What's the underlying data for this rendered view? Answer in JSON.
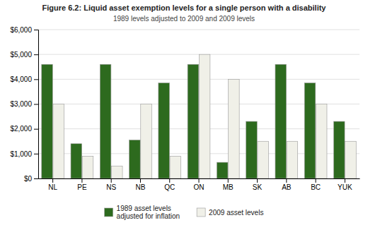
{
  "chart_data": {
    "type": "bar",
    "title": "Figure 6.2: Liquid asset exemption levels for a single person with a disability",
    "subtitle": "1989 levels adjusted to 2009 and 2009 levels",
    "categories": [
      "NL",
      "PE",
      "NS",
      "NB",
      "QC",
      "ON",
      "MB",
      "SK",
      "AB",
      "BC",
      "YUK"
    ],
    "series": [
      {
        "name": "1989 asset levels\nadjusted for inflation",
        "color": "#2d6a1e",
        "values": [
          4600,
          1400,
          4600,
          1550,
          3850,
          4600,
          650,
          2300,
          4600,
          3850,
          2300
        ]
      },
      {
        "name": "2009 asset levels",
        "color": "#f0f0e8",
        "values": [
          3000,
          900,
          500,
          3000,
          900,
          5000,
          4000,
          1500,
          1500,
          3000,
          1500
        ]
      }
    ],
    "ylim": [
      0,
      6000
    ],
    "yticks": [
      {
        "value": 0,
        "label": "$0"
      },
      {
        "value": 1000,
        "label": "$1,000"
      },
      {
        "value": 2000,
        "label": "$2,000"
      },
      {
        "value": 3000,
        "label": "$3,000"
      },
      {
        "value": 4000,
        "label": "$4,000"
      },
      {
        "value": 5000,
        "label": "$5,000"
      },
      {
        "value": 6000,
        "label": "$6,000"
      }
    ],
    "grid": true,
    "legend": "bottom"
  }
}
